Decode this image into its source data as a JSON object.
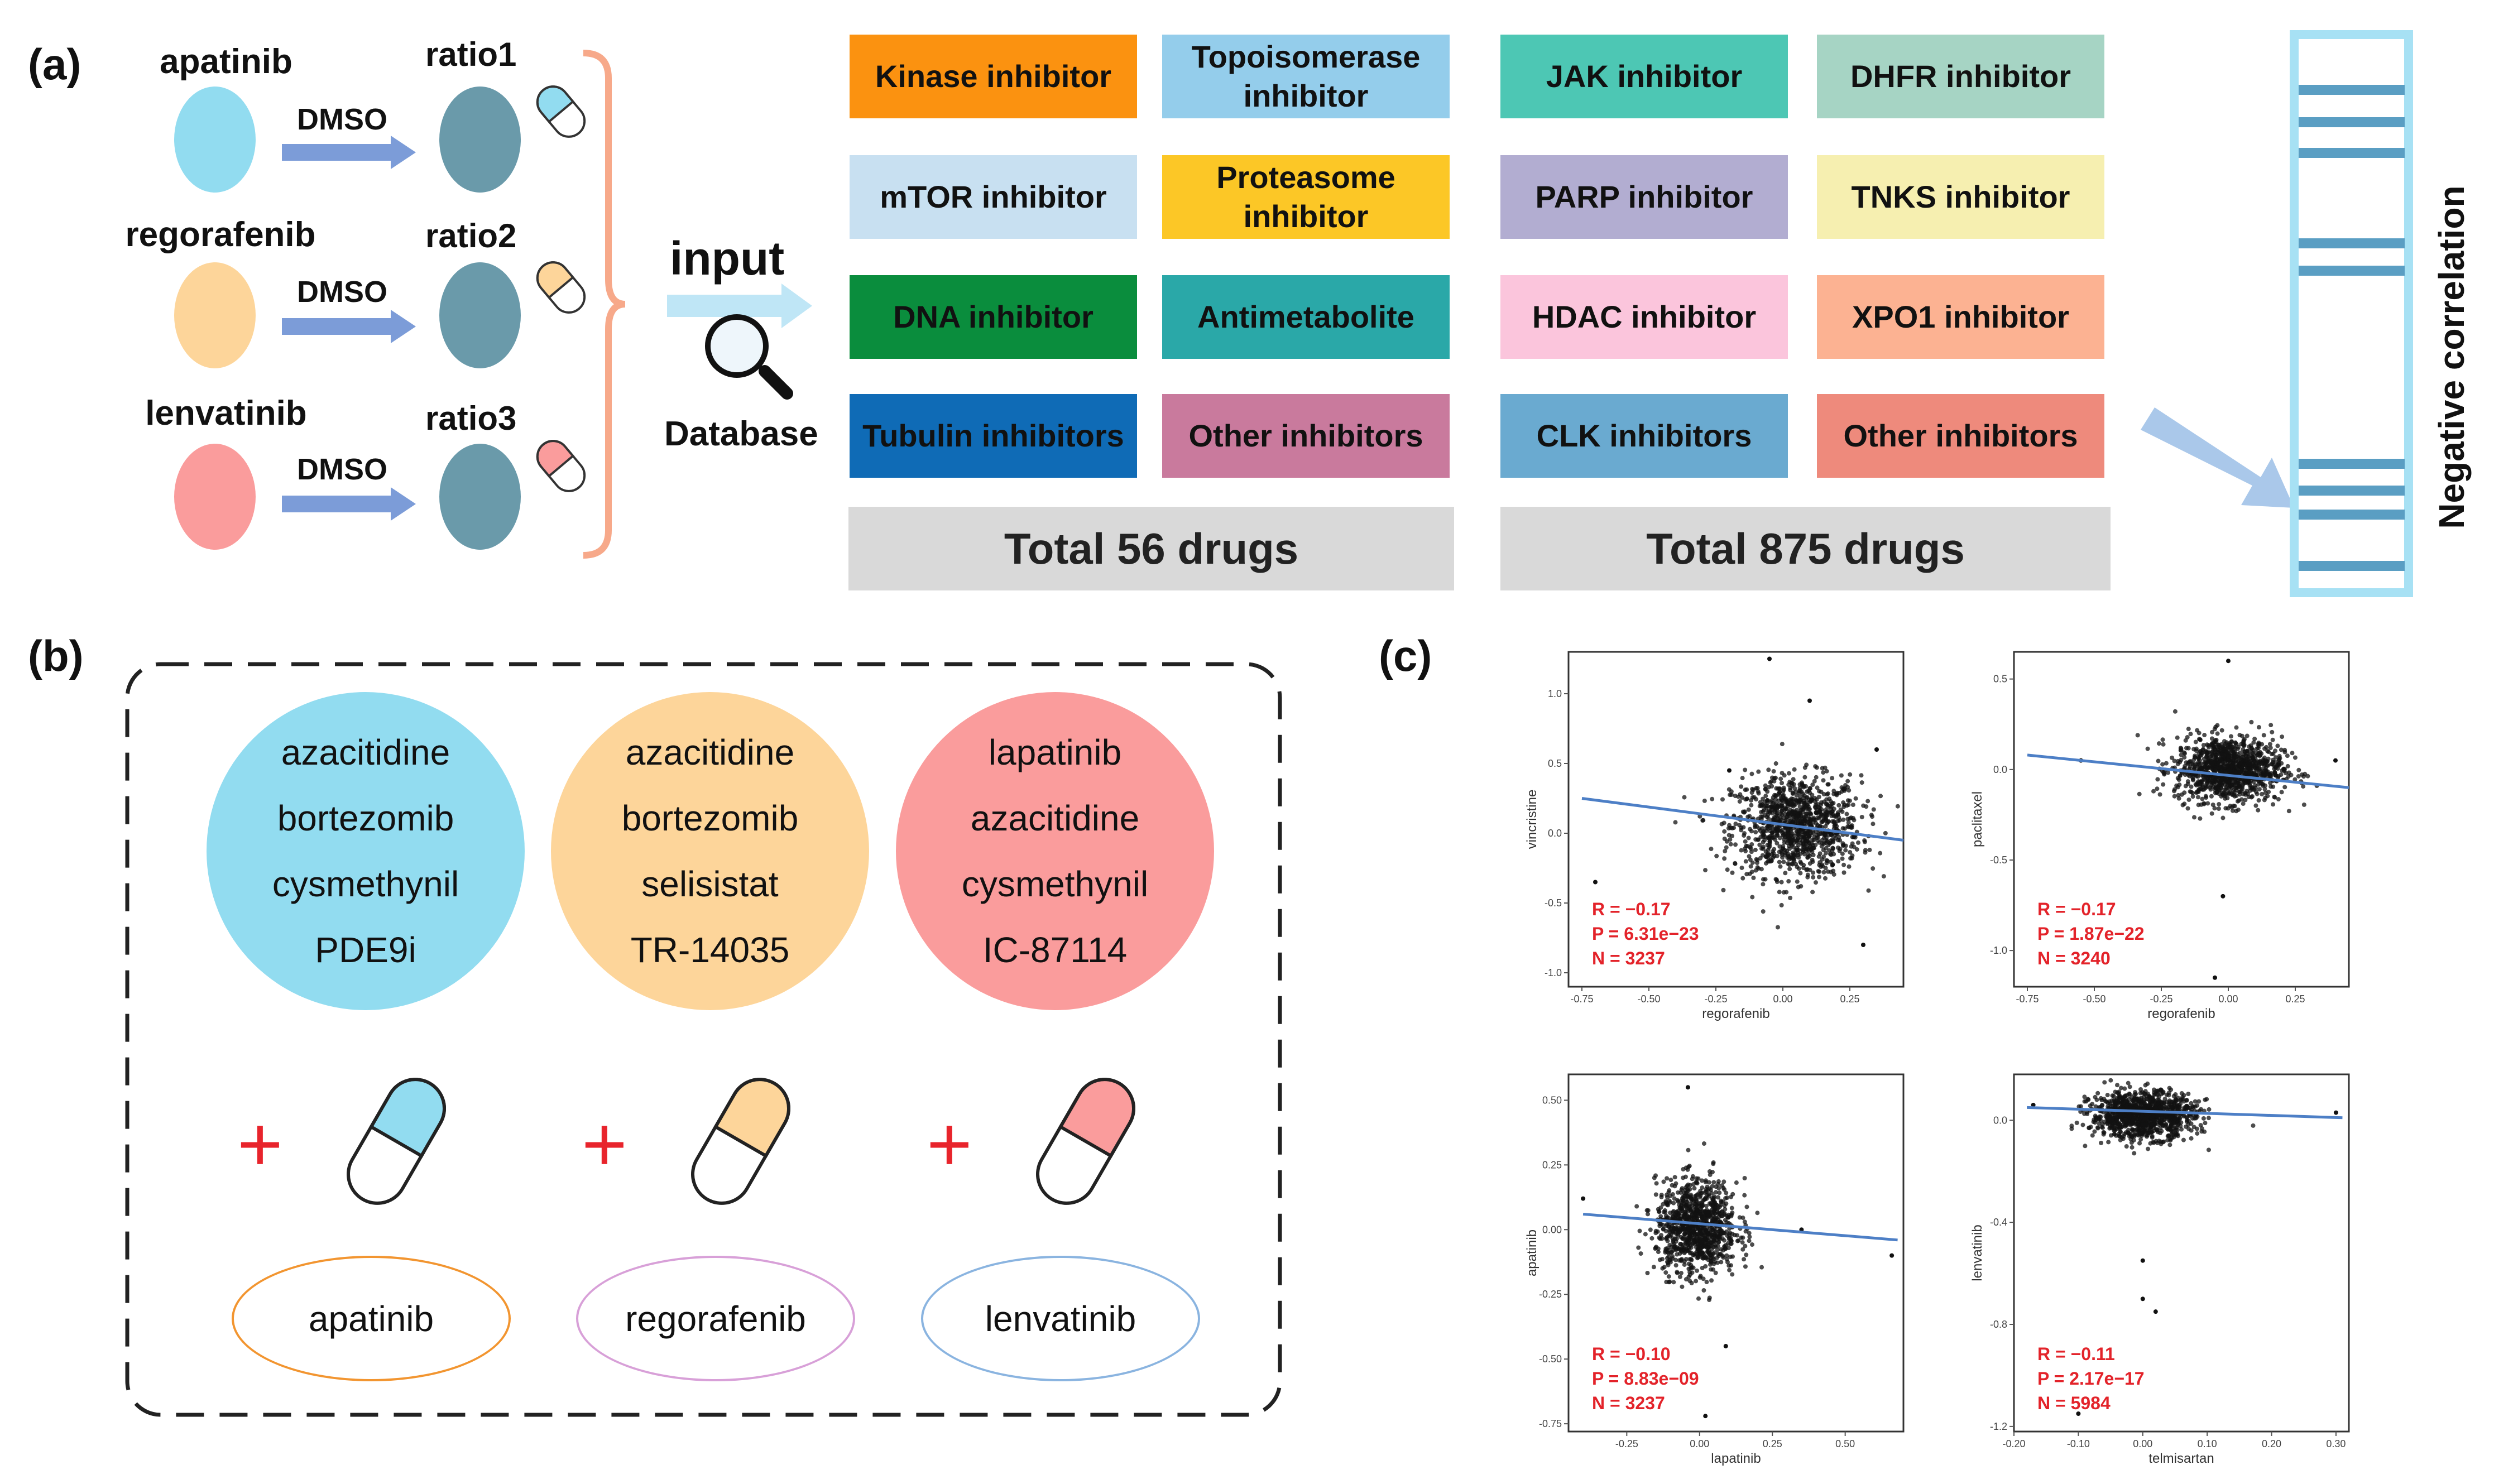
{
  "panel_labels": {
    "a": "(a)",
    "b": "(b)",
    "c": "(c)"
  },
  "panel_a": {
    "drugs": [
      {
        "name": "apatinib",
        "ratio": "ratio1",
        "color": "#92dcf0"
      },
      {
        "name": "regorafenib",
        "ratio": "ratio2",
        "color": "#fdd59a"
      },
      {
        "name": "lenvatinib",
        "ratio": "ratio3",
        "color": "#fa9c9c"
      }
    ],
    "solvent": "DMSO",
    "input_label": "input",
    "database_label": "Database",
    "categories_56": [
      {
        "label": "Kinase inhibitor",
        "color": "#fb9210",
        "text_color": "#111111"
      },
      {
        "label": "Topoisomerase inhibitor",
        "color": "#94cdeb",
        "text_color": "#111111"
      },
      {
        "label": "mTOR inhibitor",
        "color": "#c8e0f1",
        "text_color": "#111111"
      },
      {
        "label": "Proteasome inhibitor",
        "color": "#fcc726",
        "text_color": "#111111"
      },
      {
        "label": "DNA inhibitor",
        "color": "#0a8d3d",
        "text_color": "#111111"
      },
      {
        "label": "Antimetabolite",
        "color": "#2aa8a8",
        "text_color": "#111111"
      },
      {
        "label": "Tubulin inhibitors",
        "color": "#0f6bb6",
        "text_color": "#111111"
      },
      {
        "label": "Other inhibitors",
        "color": "#c97a9d",
        "text_color": "#111111"
      }
    ],
    "categories_875": [
      {
        "label": "JAK inhibitor",
        "color": "#4dc7b4",
        "text_color": "#111111"
      },
      {
        "label": "DHFR inhibitor",
        "color": "#a6d4c4",
        "text_color": "#111111"
      },
      {
        "label": "PARP inhibitor",
        "color": "#b2add1",
        "text_color": "#111111"
      },
      {
        "label": "TNKS inhibitor",
        "color": "#f6efb0",
        "text_color": "#111111"
      },
      {
        "label": "HDAC inhibitor",
        "color": "#fbc5dc",
        "text_color": "#111111"
      },
      {
        "label": "XPO1 inhibitor",
        "color": "#fcb292",
        "text_color": "#111111"
      },
      {
        "label": "CLK inhibitors",
        "color": "#6aaad0",
        "text_color": "#111111"
      },
      {
        "label": "Other inhibitors",
        "color": "#ee8a7c",
        "text_color": "#111111"
      }
    ],
    "total_56": "Total 56 drugs",
    "total_875": "Total 875 drugs",
    "negative_label": "Negative correlation"
  },
  "panel_b": {
    "groups": [
      {
        "drugs": [
          "azacitidine",
          "bortezomib",
          "cysmethynil",
          "PDE9i"
        ],
        "base": "apatinib",
        "fill": "#92dcf0",
        "outline": "#f29530"
      },
      {
        "drugs": [
          "azacitidine",
          "bortezomib",
          "selisistat",
          "TR-14035"
        ],
        "base": "regorafenib",
        "fill": "#fdd59a",
        "outline": "#d8a0d8"
      },
      {
        "drugs": [
          "lapatinib",
          "azacitidine",
          "cysmethynil",
          "IC-87114"
        ],
        "base": "lenvatinib",
        "fill": "#fa9c9c",
        "outline": "#8ab4e0"
      }
    ],
    "plus": "+"
  },
  "chart_data": [
    {
      "type": "scatter",
      "xlabel": "regorafenib",
      "ylabel": "vincristine",
      "xlim": [
        -0.8,
        0.45
      ],
      "ylim": [
        -1.1,
        1.3
      ],
      "xticks": [
        -0.75,
        -0.5,
        -0.25,
        0.0,
        0.25
      ],
      "yticks": [
        1.0,
        0.5,
        0.0,
        -0.5,
        -1.0
      ],
      "fit_line": {
        "x": [
          -0.75,
          0.45
        ],
        "y": [
          0.25,
          -0.05
        ]
      },
      "cloud": {
        "cx": 0.05,
        "cy": 0.05,
        "sx": 0.12,
        "sy": 0.18,
        "n": 1100
      },
      "outliers": [
        [
          -0.05,
          1.25
        ],
        [
          0.1,
          0.95
        ],
        [
          -0.7,
          -0.35
        ],
        [
          0.3,
          -0.8
        ],
        [
          0.35,
          0.6
        ],
        [
          -0.2,
          0.45
        ]
      ],
      "stats": [
        "R = −0.17",
        "P = 6.31e−23",
        "N = 3237"
      ]
    },
    {
      "type": "scatter",
      "xlabel": "regorafenib",
      "ylabel": "paclitaxel",
      "xlim": [
        -0.8,
        0.45
      ],
      "ylim": [
        -1.2,
        0.65
      ],
      "xticks": [
        -0.75,
        -0.5,
        -0.25,
        0.0,
        0.25
      ],
      "yticks": [
        0.5,
        0.0,
        -0.5,
        -1.0
      ],
      "fit_line": {
        "x": [
          -0.75,
          0.45
        ],
        "y": [
          0.08,
          -0.1
        ]
      },
      "cloud": {
        "cx": 0.0,
        "cy": 0.0,
        "sx": 0.1,
        "sy": 0.09,
        "n": 1100
      },
      "outliers": [
        [
          0.0,
          0.6
        ],
        [
          -0.02,
          -0.7
        ],
        [
          -0.05,
          -1.15
        ],
        [
          0.4,
          0.05
        ],
        [
          -0.55,
          0.05
        ]
      ],
      "stats": [
        "R = −0.17",
        "P = 1.87e−22",
        "N = 3240"
      ]
    },
    {
      "type": "scatter",
      "xlabel": "lapatinib",
      "ylabel": "apatinib",
      "xlim": [
        -0.45,
        0.7
      ],
      "ylim": [
        -0.78,
        0.6
      ],
      "xticks": [
        -0.25,
        0.0,
        0.25,
        0.5
      ],
      "yticks": [
        0.5,
        0.25,
        0.0,
        -0.25,
        -0.5,
        -0.75
      ],
      "fit_line": {
        "x": [
          -0.4,
          0.68
        ],
        "y": [
          0.06,
          -0.04
        ]
      },
      "cloud": {
        "cx": -0.01,
        "cy": 0.01,
        "sx": 0.07,
        "sy": 0.09,
        "n": 1000
      },
      "outliers": [
        [
          -0.04,
          0.55
        ],
        [
          0.02,
          -0.72
        ],
        [
          0.09,
          -0.45
        ],
        [
          0.66,
          -0.1
        ],
        [
          -0.4,
          0.12
        ],
        [
          0.35,
          0.0
        ]
      ],
      "stats": [
        "R = −0.10",
        "P = 8.83e−09",
        "N = 3237"
      ]
    },
    {
      "type": "scatter",
      "xlabel": "telmisartan",
      "ylabel": "lenvatinib",
      "xlim": [
        -0.2,
        0.32
      ],
      "ylim": [
        -1.22,
        0.18
      ],
      "xticks": [
        -0.2,
        -0.1,
        0.0,
        0.1,
        0.2,
        0.3
      ],
      "yticks": [
        0.0,
        -0.4,
        -0.8,
        -1.2
      ],
      "fit_line": {
        "x": [
          -0.18,
          0.31
        ],
        "y": [
          0.05,
          0.01
        ]
      },
      "cloud": {
        "cx": 0.0,
        "cy": 0.02,
        "sx": 0.04,
        "sy": 0.045,
        "n": 1100
      },
      "outliers": [
        [
          -0.1,
          -1.15
        ],
        [
          0.0,
          -0.55
        ],
        [
          0.0,
          -0.7
        ],
        [
          0.3,
          0.03
        ],
        [
          -0.17,
          0.06
        ],
        [
          0.02,
          -0.75
        ]
      ],
      "stats": [
        "R = −0.11",
        "P = 2.17e−17",
        "N = 5984"
      ]
    }
  ]
}
